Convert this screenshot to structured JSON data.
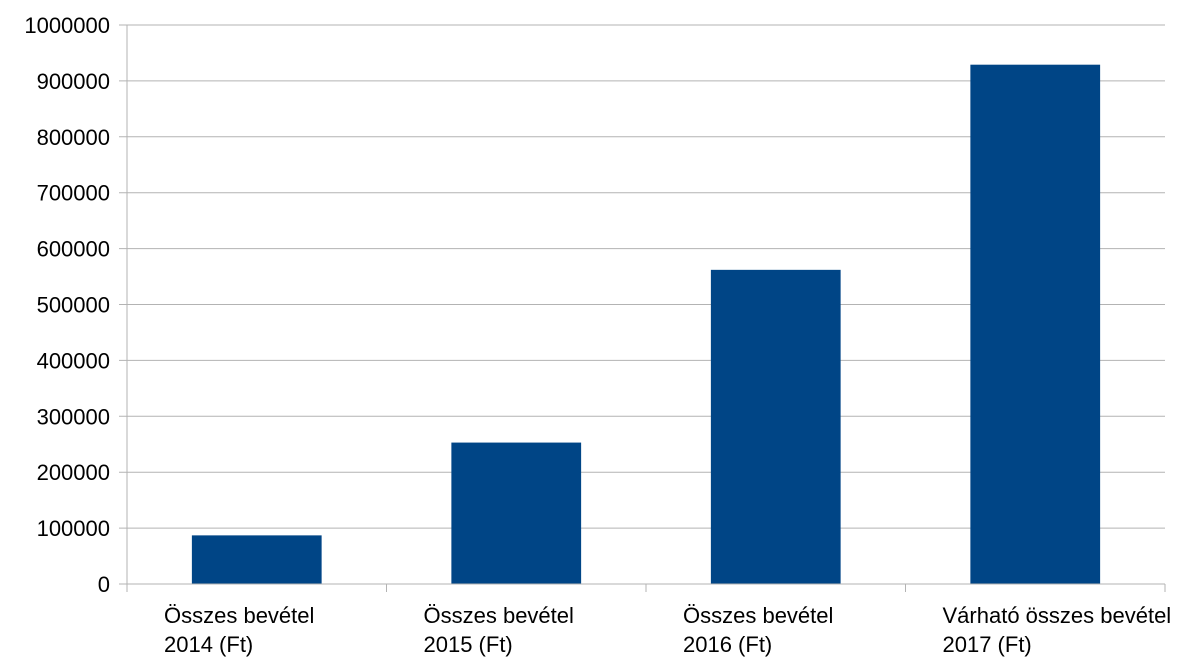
{
  "chart_data": {
    "type": "bar",
    "title": "",
    "xlabel": "",
    "ylabel": "",
    "categories": [
      [
        "Összes bevétel",
        "2014 (Ft)"
      ],
      [
        "Összes bevétel",
        "2015 (Ft)"
      ],
      [
        "Összes bevétel",
        "2016 (Ft)"
      ],
      [
        "Várható összes bevétel",
        "2017 (Ft)"
      ]
    ],
    "values": [
      87000,
      253000,
      562000,
      929000
    ],
    "ylim": [
      0,
      1000000
    ],
    "yticks": [
      "0",
      "100000",
      "200000",
      "300000",
      "400000",
      "500000",
      "600000",
      "700000",
      "800000",
      "900000",
      "1000000"
    ],
    "grid": true,
    "legend": "none",
    "colors": {
      "bar": "#004586",
      "grid": "#b3b3b3",
      "axis": "#b3b3b3",
      "text": "#000000"
    }
  }
}
